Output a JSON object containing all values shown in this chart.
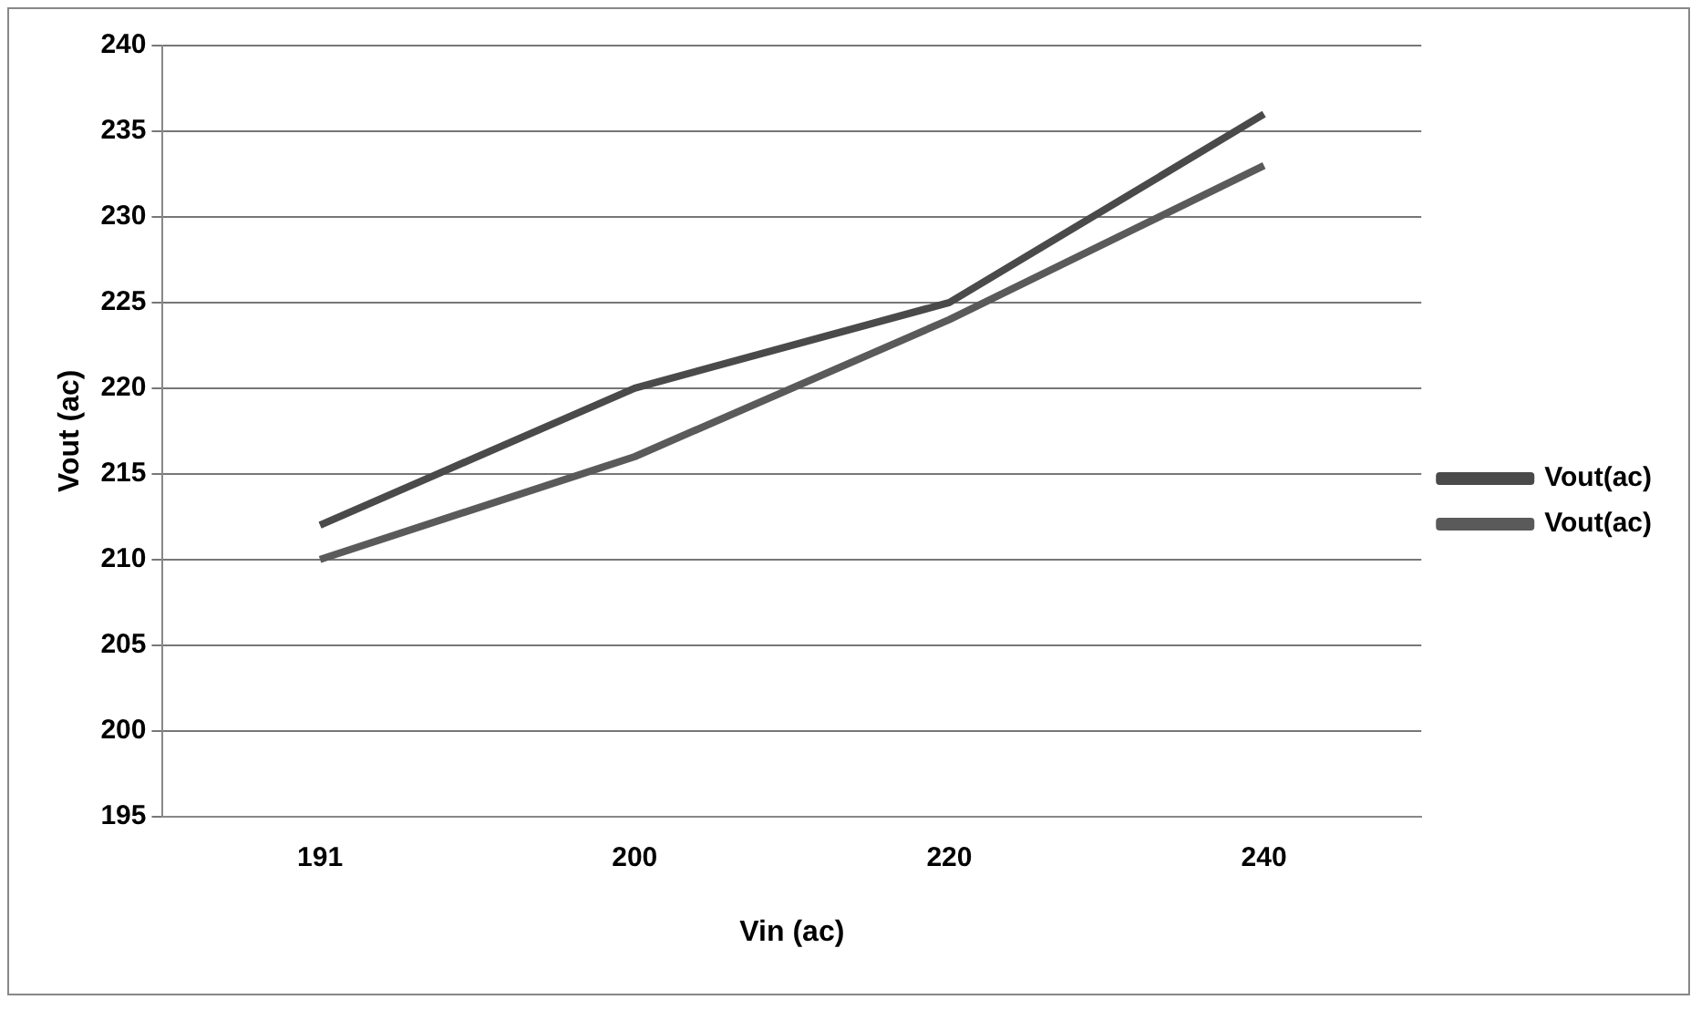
{
  "chart_data": {
    "type": "line",
    "xlabel": "Vin (ac)",
    "ylabel": "Vout (ac)",
    "categories": [
      "191",
      "200",
      "220",
      "240"
    ],
    "series": [
      {
        "name": "Vout(ac)",
        "color": "#4a4a4a",
        "values": [
          212,
          220,
          225,
          236
        ]
      },
      {
        "name": "Vout(ac)",
        "color": "#5a5a5a",
        "values": [
          210,
          216,
          224,
          233
        ]
      }
    ],
    "ylim": [
      195,
      240
    ],
    "yticks": [
      195,
      200,
      205,
      210,
      215,
      220,
      225,
      230,
      235,
      240
    ],
    "grid": "y",
    "legend": "right",
    "marker": "none",
    "line_style": "solid"
  }
}
